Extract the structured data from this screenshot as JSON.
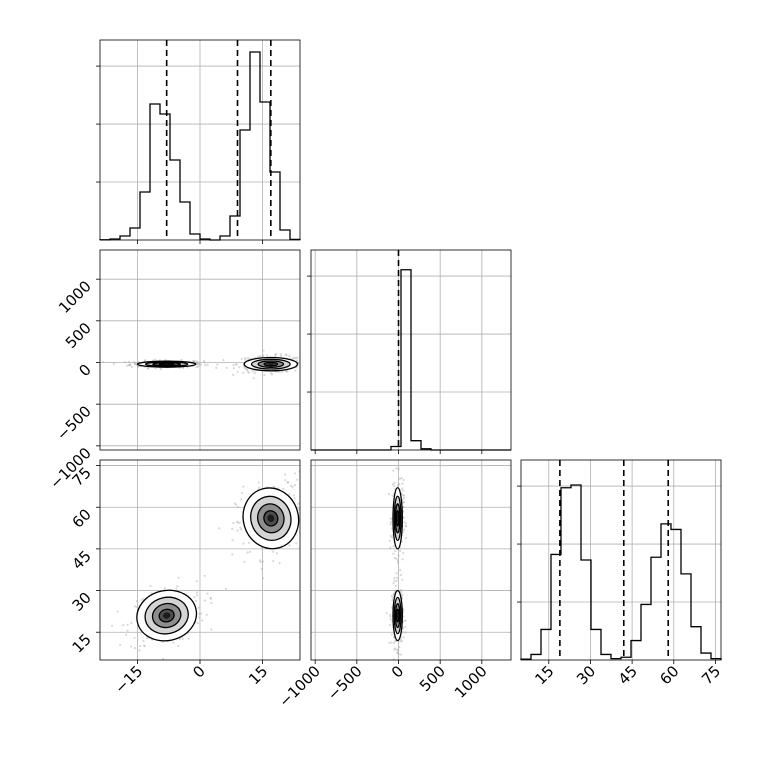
{
  "chart_data": {
    "type": "corner",
    "parameters": [
      "p0",
      "p1",
      "p2"
    ],
    "ranges": {
      "p0": [
        -24,
        24
      ],
      "p1": [
        -1050,
        1350
      ],
      "p2": [
        5,
        77
      ]
    },
    "ticks": {
      "p0": {
        "values": [
          -15,
          0,
          15
        ],
        "labels": [
          "−15",
          "0",
          "15"
        ]
      },
      "p1": {
        "values": [
          -1000,
          -500,
          0,
          500,
          1000
        ],
        "labels": [
          "−1000",
          "−500",
          "0",
          "500",
          "1000"
        ]
      },
      "p2": {
        "values": [
          15,
          30,
          45,
          60,
          75
        ],
        "labels": [
          "15",
          "30",
          "45",
          "60",
          "75"
        ]
      }
    },
    "histograms": [
      {
        "param": "p0",
        "bin_edges": [
          -24,
          -21.6,
          -19.2,
          -16.8,
          -14.4,
          -12,
          -9.6,
          -7.2,
          -4.8,
          -2.4,
          0,
          2.4,
          4.8,
          7.2,
          9.6,
          12,
          14.4,
          16.8,
          19.2,
          21.6,
          24
        ],
        "counts": [
          0.1,
          0.5,
          2,
          6,
          24,
          68,
          63,
          40,
          19,
          3,
          0.5,
          0,
          2,
          12,
          55,
          94,
          69,
          34,
          5,
          0.3
        ],
        "ymax": 100,
        "quantiles": [
          -8,
          9,
          17
        ]
      },
      {
        "param": "p1",
        "bin_edges": [
          -1050,
          -930,
          -810,
          -690,
          -570,
          -450,
          -330,
          -210,
          -90,
          30,
          150,
          270,
          390,
          510,
          630,
          750,
          870,
          990,
          1110,
          1230,
          1350
        ],
        "counts": [
          0,
          0,
          0,
          0,
          0,
          0,
          0,
          0,
          3,
          155,
          8,
          1,
          0,
          0,
          0,
          0,
          0,
          0,
          0,
          0
        ],
        "ymax": 172,
        "quantiles": [
          0
        ]
      },
      {
        "param": "p2",
        "bin_edges": [
          5,
          8.6,
          12.2,
          15.8,
          19.4,
          23,
          26.6,
          30.2,
          33.8,
          37.4,
          41,
          44.6,
          48.2,
          51.8,
          55.4,
          59,
          62.6,
          66.2,
          69.8,
          73.4,
          77
        ],
        "counts": [
          0.3,
          2,
          11,
          38,
          62,
          63,
          36,
          11,
          2,
          0.5,
          1,
          7,
          20,
          37,
          49,
          47,
          31,
          12,
          2.5,
          0.5
        ],
        "ymax": 72,
        "quantiles": [
          19,
          42,
          58
        ]
      }
    ],
    "scatter_panels": [
      {
        "x": "p0",
        "y": "p1",
        "clusters": [
          {
            "mean": [
              -8,
              -20
            ],
            "sd": [
              3.5,
              18
            ]
          },
          {
            "mean": [
              17,
              -20
            ],
            "sd": [
              3.2,
              40
            ]
          }
        ]
      },
      {
        "x": "p0",
        "y": "p2",
        "clusters": [
          {
            "mean": [
              -8,
              21
            ],
            "sd": [
              3.6,
              4.5
            ],
            "corr": 0.3
          },
          {
            "mean": [
              17,
              56
            ],
            "sd": [
              3.3,
              5.5
            ],
            "corr": 0.3
          }
        ]
      },
      {
        "x": "p1",
        "y": "p2",
        "clusters": [
          {
            "mean": [
              -10,
              21
            ],
            "sd": [
              28,
              4.5
            ]
          },
          {
            "mean": [
              -10,
              56
            ],
            "sd": [
              28,
              5.5
            ]
          }
        ]
      }
    ],
    "colors": {
      "line": "#000000",
      "grid": "#b0b0b0",
      "density": [
        "#d4d4d4",
        "#8e8e8e",
        "#4e4e4e",
        "#1c1c1c"
      ],
      "points": "#a9a9a9"
    },
    "grid": true
  }
}
